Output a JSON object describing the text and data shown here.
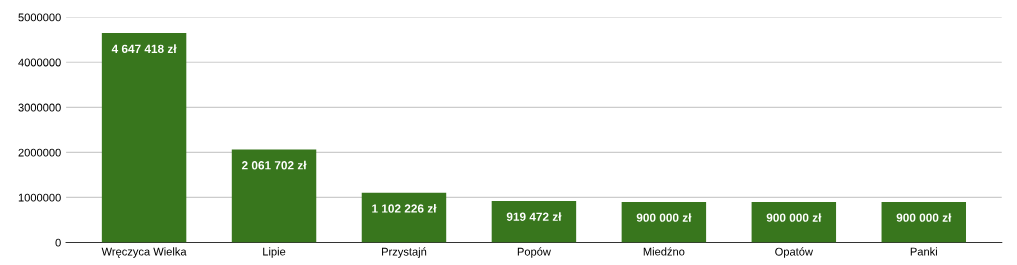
{
  "chart_data": {
    "type": "bar",
    "categories": [
      "Wręczyca Wielka",
      "Lipie",
      "Przystajń",
      "Popów",
      "Miedźno",
      "Opatów",
      "Panki"
    ],
    "values": [
      4647418,
      2061702,
      1102226,
      919472,
      900000,
      900000,
      900000
    ],
    "value_labels": [
      "4 647 418 zł",
      "2 061 702 zł",
      "1 102 226 zł",
      "919 472 zł",
      "900 000 zł",
      "900 000 zł",
      "900 000 zł"
    ],
    "color": "#38761d",
    "ylim": [
      0,
      5000000
    ],
    "yticks": [
      0,
      1000000,
      2000000,
      3000000,
      4000000,
      5000000
    ],
    "grid": "y",
    "legend": false
  }
}
